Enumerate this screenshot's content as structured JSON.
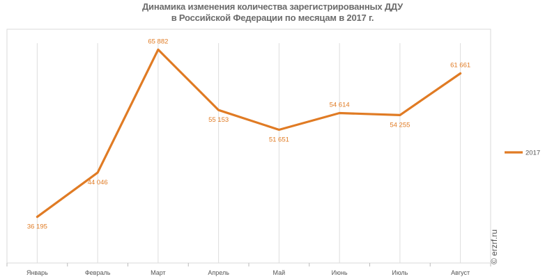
{
  "chart_data": {
    "type": "line",
    "title": "Динамика изменения количества зарегистрированных ДДУ",
    "subtitle": "в Российской Федерации по месяцам в 2017 г.",
    "categories": [
      "Январь",
      "Февраль",
      "Март",
      "Апрель",
      "Май",
      "Июнь",
      "Июль",
      "Август"
    ],
    "series": [
      {
        "name": "2017",
        "values": [
          36195,
          44046,
          65882,
          55153,
          51651,
          54614,
          54255,
          61661
        ],
        "labels": [
          "36 195",
          "44 046",
          "65 882",
          "55 153",
          "51 651",
          "54 614",
          "54 255",
          "61 661"
        ],
        "color": "#e07b24"
      }
    ],
    "ylim": [
      28000,
      69500
    ],
    "grid": "vertical",
    "legend": "right",
    "xlabel": "",
    "ylabel": ""
  },
  "watermark": "© erzrf.ru",
  "colors": {
    "line": "#e07b24",
    "grid": "#dddddd",
    "frame": "#d9d9d9",
    "text": "#555555"
  }
}
